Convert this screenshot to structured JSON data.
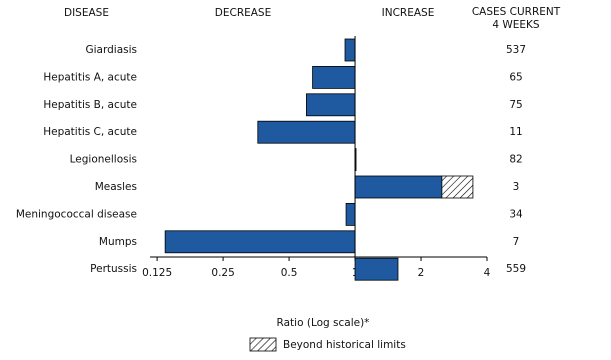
{
  "chart_data": {
    "type": "bar",
    "orientation": "horizontal",
    "log_scale": true,
    "headers": {
      "disease": "DISEASE",
      "decrease": "DECREASE",
      "increase": "INCREASE",
      "cases": [
        "CASES CURRENT",
        "4 WEEKS"
      ]
    },
    "categories": [
      "Giardiasis",
      "Hepatitis A, acute",
      "Hepatitis B, acute",
      "Hepatitis C, acute",
      "Legionellosis",
      "Measles",
      "Meningococcal disease",
      "Mumps",
      "Pertussis"
    ],
    "values": [
      0.9,
      0.64,
      0.6,
      0.36,
      1.01,
      3.45,
      0.91,
      0.136,
      1.57
    ],
    "historical_limits": [
      null,
      null,
      null,
      null,
      null,
      2.49,
      null,
      null,
      null
    ],
    "cases": [
      537,
      65,
      75,
      11,
      82,
      3,
      34,
      7,
      559
    ],
    "color": "#1f5aa0",
    "xlim": [
      0.116,
      4
    ],
    "xticks": [
      0.125,
      0.25,
      0.5,
      1,
      2,
      4
    ],
    "baseline": 1,
    "xlabel": "Ratio (Log scale)*",
    "legend": "Beyond historical limits"
  }
}
